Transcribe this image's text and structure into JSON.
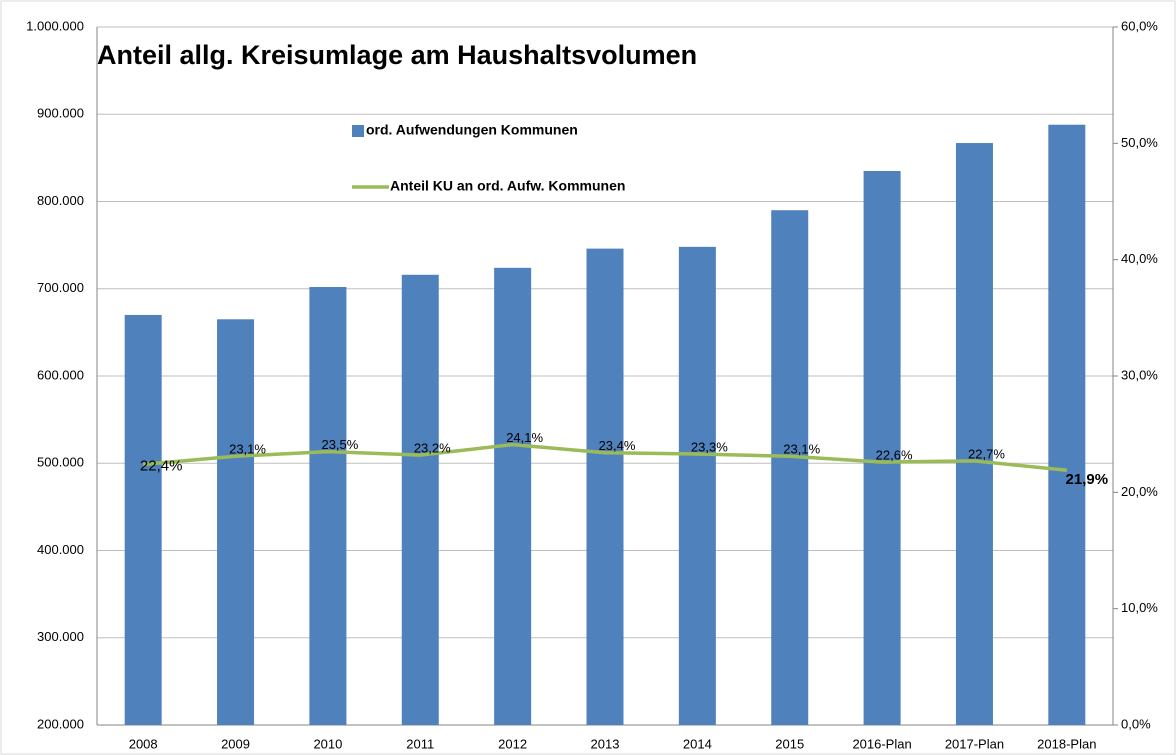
{
  "chart_data": {
    "type": "bar_line",
    "title": "Anteil allg. Kreisumlage am Haushaltsvolumen",
    "categories": [
      "2008",
      "2009",
      "2010",
      "2011",
      "2012",
      "2013",
      "2014",
      "2015",
      "2016-Plan",
      "2017-Plan",
      "2018-Plan"
    ],
    "series": [
      {
        "name": "ord. Aufwendungen Kommunen",
        "color": "#4f81bd",
        "type": "bar",
        "values": [
          670000,
          665000,
          702000,
          716000,
          724000,
          746000,
          748000,
          790000,
          835000,
          867000,
          888000
        ]
      },
      {
        "name": "Anteil KU an ord. Aufw. Kommunen",
        "color": "#9bbb59",
        "type": "line",
        "axis": "y2",
        "values": [
          22.4,
          23.1,
          23.5,
          23.2,
          24.1,
          23.4,
          23.3,
          23.1,
          22.6,
          22.7,
          21.9
        ],
        "value_labels": [
          "22,4%",
          "23,1%",
          "23,5%",
          "23,2%",
          "24,1%",
          "23,4%",
          "23,3%",
          "23,1%",
          "22,6%",
          "22,7%",
          "21,9%"
        ]
      }
    ],
    "ylim": [
      200000,
      1000000
    ],
    "yticks": [
      {
        "value": 200000,
        "label": "200.000"
      },
      {
        "value": 300000,
        "label": "300.000"
      },
      {
        "value": 400000,
        "label": "400.000"
      },
      {
        "value": 500000,
        "label": "500.000"
      },
      {
        "value": 600000,
        "label": "600.000"
      },
      {
        "value": 700000,
        "label": "700.000"
      },
      {
        "value": 800000,
        "label": "800.000"
      },
      {
        "value": 900000,
        "label": "900.000"
      },
      {
        "value": 1000000,
        "label": "1.000.000"
      }
    ],
    "y2lim": [
      0,
      60
    ],
    "y2ticks": [
      {
        "value": 0,
        "label": "0,0%"
      },
      {
        "value": 10,
        "label": "10,0%"
      },
      {
        "value": 20,
        "label": "20,0%"
      },
      {
        "value": 30,
        "label": "30,0%"
      },
      {
        "value": 40,
        "label": "40,0%"
      },
      {
        "value": 50,
        "label": "50,0%"
      },
      {
        "value": 60,
        "label": "60,0%"
      }
    ],
    "grid": true
  }
}
